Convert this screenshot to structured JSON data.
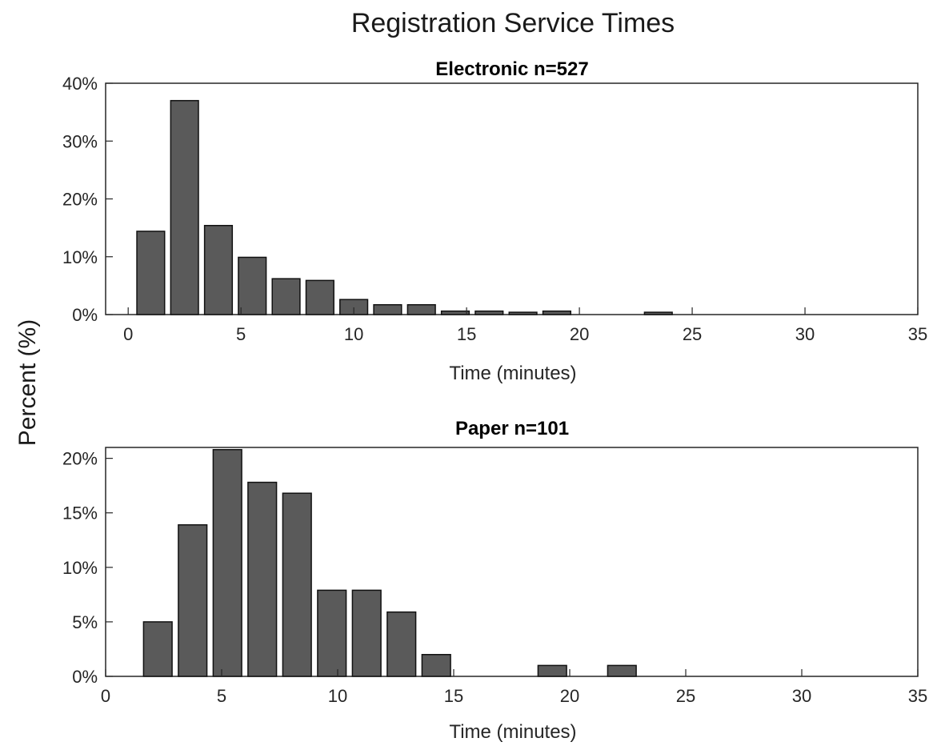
{
  "figure": {
    "title": "Registration Service Times",
    "ylabel": "Percent (%)"
  },
  "colors": {
    "bar": "#5a5a5a",
    "axes": "#262626"
  },
  "chart_data": [
    {
      "type": "bar",
      "title": "Electronic n=527",
      "xlabel": "Time (minutes)",
      "xlim": [
        -1,
        35
      ],
      "ylim": [
        0,
        40
      ],
      "xticks": [
        0,
        5,
        10,
        15,
        20,
        25,
        30,
        35
      ],
      "yticks": [
        0,
        10,
        20,
        30,
        40
      ],
      "ytick_labels": [
        "0%",
        "10%",
        "20%",
        "30%",
        "40%"
      ],
      "bin_width": 1.5,
      "x": [
        1,
        2.5,
        4,
        5.5,
        7,
        8.5,
        10,
        11.5,
        13,
        14.5,
        16,
        17.5,
        19,
        23.5
      ],
      "values": [
        14.4,
        37,
        15.4,
        9.9,
        6.2,
        5.9,
        2.6,
        1.7,
        1.7,
        0.6,
        0.6,
        0.4,
        0.6,
        0.4
      ],
      "grid": false
    },
    {
      "type": "bar",
      "title": "Paper n=101",
      "xlabel": "Time (minutes)",
      "xlim": [
        0,
        35
      ],
      "ylim": [
        0,
        21
      ],
      "xticks": [
        0,
        5,
        10,
        15,
        20,
        25,
        30,
        35
      ],
      "yticks": [
        0,
        5,
        10,
        15,
        20
      ],
      "ytick_labels": [
        "0%",
        "5%",
        "10%",
        "15%",
        "20%"
      ],
      "bin_width": 1.5,
      "x": [
        2.25,
        3.75,
        5.25,
        6.75,
        8.25,
        9.75,
        11.25,
        12.75,
        14.25,
        19.25,
        22.25
      ],
      "values": [
        5,
        13.9,
        20.8,
        17.8,
        16.8,
        7.9,
        7.9,
        5.9,
        2,
        1,
        1
      ],
      "grid": false
    }
  ]
}
